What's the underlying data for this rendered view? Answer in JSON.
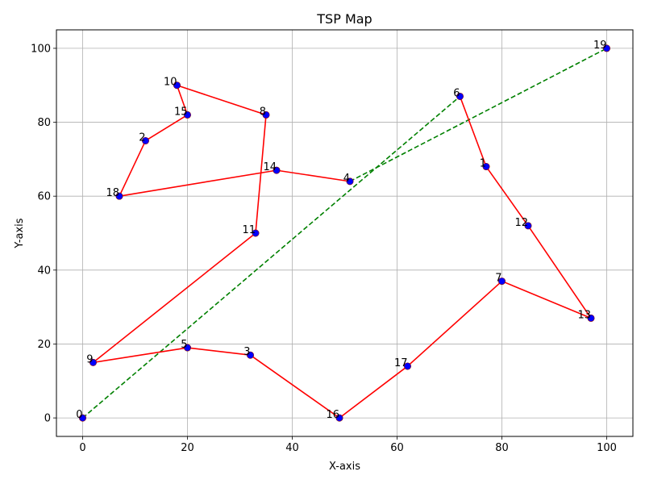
{
  "chart_data": {
    "type": "scatter",
    "title": "TSP Map",
    "xlabel": "X-axis",
    "ylabel": "Y-axis",
    "xlim": [
      -5,
      105
    ],
    "ylim": [
      -5,
      105
    ],
    "xticks": [
      0,
      20,
      40,
      60,
      80,
      100
    ],
    "yticks": [
      0,
      20,
      40,
      60,
      80,
      100
    ],
    "grid": true,
    "colors": {
      "point_fill": "#0000ff",
      "point_edge": "#8b0000",
      "route": "#ff0000",
      "connector": "#008000",
      "grid": "#b0b0b0"
    },
    "cities": [
      {
        "label": "0",
        "x": 0,
        "y": 0
      },
      {
        "label": "1",
        "x": 77,
        "y": 68
      },
      {
        "label": "2",
        "x": 12,
        "y": 75
      },
      {
        "label": "3",
        "x": 32,
        "y": 17
      },
      {
        "label": "4",
        "x": 51,
        "y": 64
      },
      {
        "label": "5",
        "x": 20,
        "y": 19
      },
      {
        "label": "6",
        "x": 72,
        "y": 87
      },
      {
        "label": "7",
        "x": 80,
        "y": 37
      },
      {
        "label": "8",
        "x": 35,
        "y": 82
      },
      {
        "label": "9",
        "x": 2,
        "y": 15
      },
      {
        "label": "10",
        "x": 18,
        "y": 90
      },
      {
        "label": "11",
        "x": 33,
        "y": 50
      },
      {
        "label": "12",
        "x": 85,
        "y": 52
      },
      {
        "label": "13",
        "x": 97,
        "y": 27
      },
      {
        "label": "14",
        "x": 37,
        "y": 67
      },
      {
        "label": "15",
        "x": 20,
        "y": 82
      },
      {
        "label": "16",
        "x": 49,
        "y": 0
      },
      {
        "label": "17",
        "x": 62,
        "y": 14
      },
      {
        "label": "18",
        "x": 7,
        "y": 60
      },
      {
        "label": "19",
        "x": 100,
        "y": 100
      }
    ],
    "route": [
      "4",
      "14",
      "18",
      "2",
      "15",
      "10",
      "8",
      "11",
      "9",
      "5",
      "3",
      "16",
      "17",
      "7",
      "13",
      "12",
      "1",
      "6"
    ],
    "connectors": [
      [
        "0",
        "6"
      ],
      [
        "4",
        "19"
      ]
    ]
  }
}
